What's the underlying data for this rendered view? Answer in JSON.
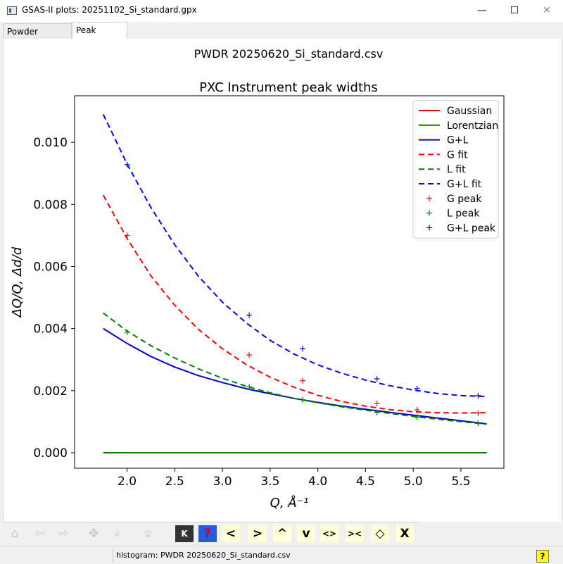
{
  "window": {
    "title": "GSAS-II plots: 20251102_Si_standard.gpx",
    "minimize_glyph": "—",
    "maximize_glyph": "☐",
    "close_glyph": "✕"
  },
  "tabs": [
    {
      "label": "Powder Patterns",
      "active": false
    },
    {
      "label": "Peak Widths",
      "active": true
    }
  ],
  "figure": {
    "suptitle": "PWDR 20250620_Si_standard.csv"
  },
  "chart_data": {
    "type": "line",
    "title": "PXC Instrument peak widths",
    "xlabel": "Q, Å⁻¹",
    "ylabel": "ΔQ/Q, Δd/d",
    "xlim": [
      1.45,
      5.95
    ],
    "ylim": [
      -0.0005,
      0.0115
    ],
    "x_ticks": [
      2.0,
      2.5,
      3.0,
      3.5,
      4.0,
      4.5,
      5.0,
      5.5
    ],
    "x_tick_labels": [
      "2.0",
      "2.5",
      "3.0",
      "3.5",
      "4.0",
      "4.5",
      "5.0",
      "5.5"
    ],
    "y_ticks": [
      0.0,
      0.002,
      0.004,
      0.006,
      0.008,
      0.01
    ],
    "y_tick_labels": [
      "0.000",
      "0.002",
      "0.004",
      "0.006",
      "0.008",
      "0.010"
    ],
    "grid": false,
    "legend_position": "top-right",
    "series": [
      {
        "name": "Gaussian",
        "style": "solid",
        "color": "#ff0000",
        "x": [
          1.75,
          2.0,
          2.5,
          3.0,
          3.5,
          4.0,
          4.5,
          5.0,
          5.5,
          5.77
        ],
        "y": [
          0.0,
          0.0,
          0.0,
          0.0,
          0.0,
          0.0,
          0.0,
          0.0,
          0.0,
          0.0
        ]
      },
      {
        "name": "Lorentzian",
        "style": "solid",
        "color": "#008000",
        "x": [
          1.75,
          2.0,
          2.5,
          3.0,
          3.5,
          4.0,
          4.5,
          5.0,
          5.5,
          5.77
        ],
        "y": [
          0.0,
          0.0,
          0.0,
          0.0,
          0.0,
          0.0,
          0.0,
          0.0,
          0.0,
          0.0
        ]
      },
      {
        "name": "G+L",
        "style": "solid",
        "color": "#0000cc",
        "x": [
          1.75,
          2.0,
          2.25,
          2.5,
          2.75,
          3.0,
          3.25,
          3.5,
          3.75,
          4.0,
          4.25,
          4.5,
          4.75,
          5.0,
          5.25,
          5.5,
          5.77
        ],
        "y": [
          0.004,
          0.00352,
          0.0031,
          0.00276,
          0.00248,
          0.00226,
          0.00206,
          0.0019,
          0.00175,
          0.00162,
          0.0015,
          0.0014,
          0.0013,
          0.00121,
          0.00112,
          0.00103,
          0.00093
        ]
      },
      {
        "name": "G fit",
        "style": "dashed",
        "color": "#ff0000",
        "x": [
          1.75,
          2.0,
          2.25,
          2.5,
          2.75,
          3.0,
          3.25,
          3.5,
          3.75,
          4.0,
          4.25,
          4.5,
          4.75,
          5.0,
          5.25,
          5.5,
          5.77
        ],
        "y": [
          0.0083,
          0.0069,
          0.0057,
          0.00475,
          0.00397,
          0.00335,
          0.00284,
          0.00243,
          0.00211,
          0.00185,
          0.00165,
          0.0015,
          0.00139,
          0.00132,
          0.00129,
          0.00128,
          0.00129
        ]
      },
      {
        "name": "L fit",
        "style": "dashed",
        "color": "#008000",
        "x": [
          1.75,
          2.0,
          2.25,
          2.5,
          2.75,
          3.0,
          3.25,
          3.5,
          3.75,
          4.0,
          4.25,
          4.5,
          4.75,
          5.0,
          5.25,
          5.5,
          5.77
        ],
        "y": [
          0.0045,
          0.00392,
          0.00345,
          0.00305,
          0.0027,
          0.0024,
          0.00214,
          0.00193,
          0.00175,
          0.00161,
          0.00148,
          0.00137,
          0.00127,
          0.00117,
          0.00108,
          0.001,
          0.00092
        ]
      },
      {
        "name": "G+L fit",
        "style": "dashed",
        "color": "#0000ff",
        "x": [
          1.75,
          2.0,
          2.25,
          2.5,
          2.75,
          3.0,
          3.25,
          3.5,
          3.75,
          4.0,
          4.25,
          4.5,
          4.75,
          5.0,
          5.25,
          5.5,
          5.77
        ],
        "y": [
          0.0109,
          0.0093,
          0.0079,
          0.0067,
          0.00568,
          0.00485,
          0.00418,
          0.00362,
          0.00318,
          0.00283,
          0.00256,
          0.00234,
          0.00216,
          0.00202,
          0.00191,
          0.00184,
          0.00181
        ]
      },
      {
        "name": "G peak",
        "style": "marker",
        "color": "#ff0000",
        "x": [
          2.0,
          3.28,
          3.84,
          4.62,
          5.04,
          5.68
        ],
        "y": [
          0.007,
          0.00315,
          0.00232,
          0.00158,
          0.00138,
          0.00128
        ]
      },
      {
        "name": "L peak",
        "style": "marker",
        "color": "#008000",
        "x": [
          2.0,
          3.28,
          3.84,
          4.62,
          5.04,
          5.68
        ],
        "y": [
          0.00388,
          0.00212,
          0.0017,
          0.0013,
          0.00114,
          0.00095
        ]
      },
      {
        "name": "G+L peak",
        "style": "marker",
        "color": "#0000ff",
        "x": [
          2.0,
          3.28,
          3.84,
          4.62,
          5.04,
          5.68
        ],
        "y": [
          0.00928,
          0.00443,
          0.00335,
          0.00238,
          0.00207,
          0.00184
        ]
      }
    ]
  },
  "toolbar": {
    "buttons": [
      {
        "name": "home-icon",
        "glyph": "⌂",
        "enabled": false
      },
      {
        "name": "back-arrow-icon",
        "glyph": "⇦",
        "enabled": false
      },
      {
        "name": "forward-arrow-icon",
        "glyph": "⇨",
        "enabled": false
      },
      {
        "name": "pan-icon",
        "glyph": "✥",
        "enabled": false
      },
      {
        "name": "zoom-icon",
        "glyph": "⌕",
        "enabled": false
      },
      {
        "name": "save-icon",
        "glyph": "🖫",
        "enabled": false
      },
      {
        "name": "key-icon",
        "glyph": "K",
        "enabled": true
      },
      {
        "name": "help-icon",
        "glyph": "?",
        "enabled": true
      },
      {
        "name": "shift-left-icon",
        "glyph": "<",
        "enabled": true
      },
      {
        "name": "shift-right-icon",
        "glyph": ">",
        "enabled": true
      },
      {
        "name": "shift-up-icon",
        "glyph": "^",
        "enabled": true
      },
      {
        "name": "shift-down-icon",
        "glyph": "v",
        "enabled": true
      },
      {
        "name": "expand-x-icon",
        "glyph": "<>",
        "enabled": true
      },
      {
        "name": "shrink-x-icon",
        "glyph": "><",
        "enabled": true
      },
      {
        "name": "expand-y-icon",
        "glyph": "◇",
        "enabled": true
      },
      {
        "name": "shrink-y-icon",
        "glyph": "X",
        "enabled": true
      }
    ]
  },
  "status": {
    "text": "histogram: PWDR 20250620_Si_standard.csv",
    "help_label": "?"
  }
}
